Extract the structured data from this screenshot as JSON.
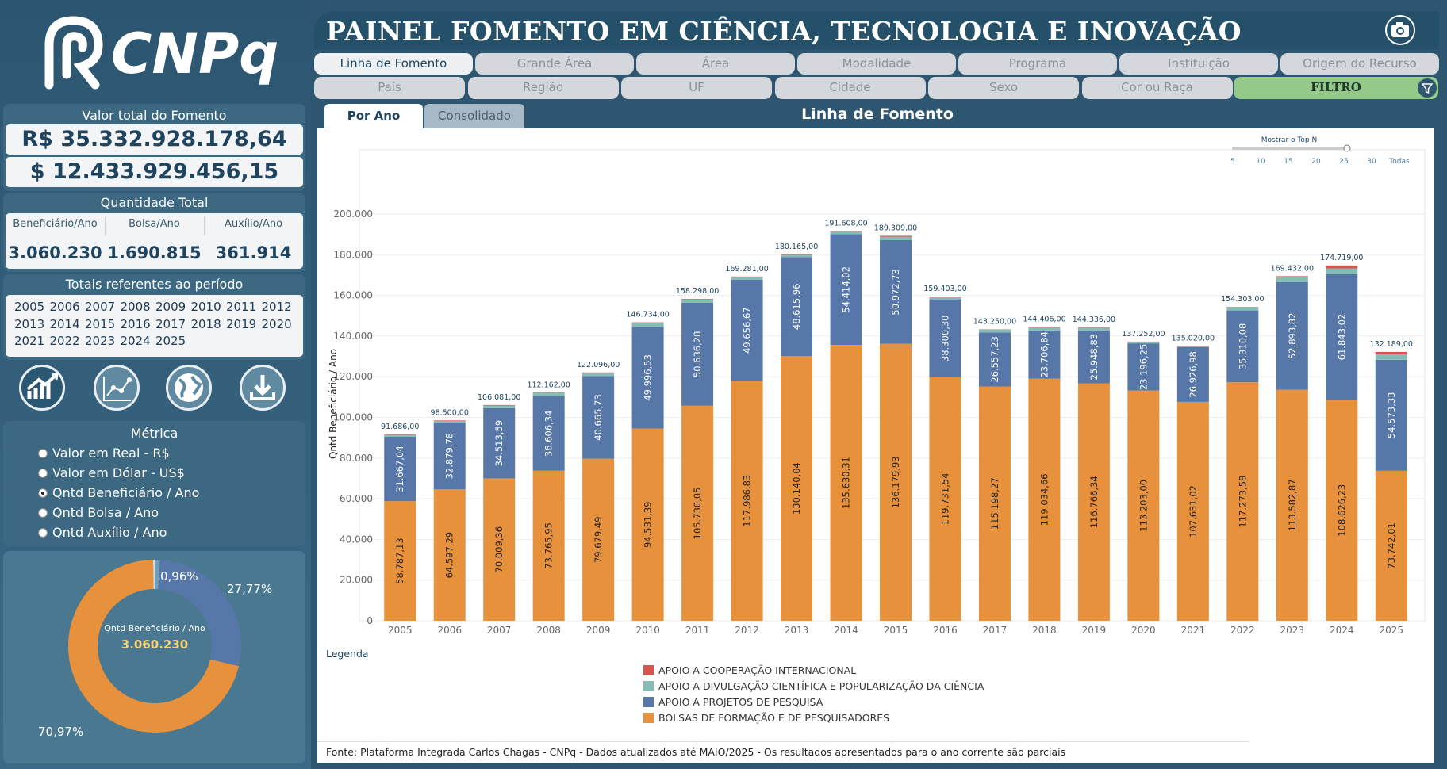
{
  "header": {
    "title": "PAINEL FOMENTO EM CIÊNCIA, TECNOLOGIA E INOVAÇÃO",
    "logo_text": "CNPq"
  },
  "nav_row1": [
    "Linha de Fomento",
    "Grande Área",
    "Área",
    "Modalidade",
    "Programa",
    "Instituição",
    "Origem do Recurso"
  ],
  "nav_row2": [
    "País",
    "Região",
    "UF",
    "Cidade",
    "Sexo",
    "Cor ou Raça"
  ],
  "filter_label": "FILTRO",
  "totals": {
    "title": "Valor total do Fomento",
    "brl": "R$ 35.332.928.178,64",
    "usd": "$ 12.433.929.456,15"
  },
  "quantity": {
    "title": "Quantidade Total",
    "items": [
      {
        "label": "Beneficiário/Ano",
        "value": "3.060.230"
      },
      {
        "label": "Bolsa/Ano",
        "value": "1.690.815"
      },
      {
        "label": "Auxílio/Ano",
        "value": "361.914"
      }
    ]
  },
  "period": {
    "title": "Totais referentes ao período",
    "years": [
      "2005",
      "2006",
      "2007",
      "2008",
      "2009",
      "2010",
      "2011",
      "2012",
      "2013",
      "2014",
      "2015",
      "2016",
      "2017",
      "2018",
      "2019",
      "2020",
      "2021",
      "2022",
      "2023",
      "2024",
      "2025"
    ]
  },
  "action_icons": [
    "trend-chart-icon",
    "line-chart-icon",
    "globe-icon",
    "download-icon"
  ],
  "metric": {
    "title": "Métrica",
    "options": [
      "Valor em Real - R$",
      "Valor em Dólar - US$",
      "Qntd Beneficiário / Ano",
      "Qntd Bolsa / Ano",
      "Qntd Auxílio / Ano"
    ],
    "selected": 2
  },
  "donut": {
    "center_label": "Qntd Beneficiário / Ano",
    "center_value": "3.060.230",
    "slices": [
      {
        "pct": 0.96,
        "label": "0,96%",
        "color": "#6f9fb8"
      },
      {
        "pct": 27.77,
        "label": "27,77%",
        "color": "#5677a8"
      },
      {
        "pct": 70.97,
        "label": "70,97%",
        "color": "#e8913c"
      },
      {
        "pct": 0.3,
        "label": "",
        "color": "#d9d9d9"
      }
    ]
  },
  "tabs": {
    "active": "Por Ano",
    "inactive": "Consolidado"
  },
  "chart_title": "Linha de Fomento",
  "top_n": {
    "label": "Mostrar o Top N",
    "ticks": [
      "5",
      "10",
      "15",
      "20",
      "25",
      "30",
      "Todas"
    ]
  },
  "legend": {
    "title": "Legenda",
    "items": [
      {
        "label": "APOIO A COOPERAÇÃO INTERNACIONAL",
        "color": "#d9534f"
      },
      {
        "label": "APOIO A DIVULGAÇÃO CIENTÍFICA E POPULARIZAÇÃO DA CIÊNCIA",
        "color": "#86bcb6"
      },
      {
        "label": "APOIO A PROJETOS DE PESQUISA",
        "color": "#5677a8"
      },
      {
        "label": "BOLSAS DE FORMAÇÃO E DE PESQUISADORES",
        "color": "#e8913c"
      }
    ]
  },
  "footer": "Fonte: Plataforma Integrada Carlos Chagas - CNPq - Dados atualizados até MAIO/2025 - Os resultados apresentados para o ano corrente são parciais",
  "chart_data": {
    "type": "bar",
    "stacked": true,
    "ylabel": "Qntd Beneficiário / Ano",
    "ylim": [
      0,
      200000
    ],
    "yticks": [
      "0",
      "20.000",
      "40.000",
      "60.000",
      "80.000",
      "100.000",
      "120.000",
      "140.000",
      "160.000",
      "180.000",
      "200.000"
    ],
    "categories": [
      "2005",
      "2006",
      "2007",
      "2008",
      "2009",
      "2010",
      "2011",
      "2012",
      "2013",
      "2014",
      "2015",
      "2016",
      "2017",
      "2018",
      "2019",
      "2020",
      "2021",
      "2022",
      "2023",
      "2024",
      "2025"
    ],
    "totals": [
      91686,
      98500,
      106081,
      112162,
      122096,
      146734,
      158298,
      169281,
      180165,
      191608,
      189309,
      159403,
      143250,
      144406,
      144336,
      137252,
      135020,
      154303,
      169432,
      174719,
      132189
    ],
    "total_labels": [
      "91.686,00",
      "98.500,00",
      "106.081,00",
      "112.162,00",
      "122.096,00",
      "146.734,00",
      "158.298,00",
      "169.281,00",
      "180.165,00",
      "191.608,00",
      "189.309,00",
      "159.403,00",
      "143.250,00",
      "144.406,00",
      "144.336,00",
      "137.252,00",
      "135.020,00",
      "154.303,00",
      "169.432,00",
      "174.719,00",
      "132.189,00"
    ],
    "series": [
      {
        "name": "BOLSAS DE FORMAÇÃO E DE PESQUISADORES",
        "color": "#e8913c",
        "values": [
          58787.13,
          64597.29,
          70009.36,
          73765.95,
          79679.49,
          94531.39,
          105730.05,
          117986.83,
          130140.04,
          135630.31,
          136179.93,
          119731.54,
          115198.27,
          119034.66,
          116766.34,
          113203.0,
          107631.02,
          117273.58,
          113582.87,
          108626.23,
          73742.01
        ],
        "labels": [
          "58.787,13",
          "64.597,29",
          "70.009,36",
          "73.765,95",
          "79.679,49",
          "94.531,39",
          "105.730,05",
          "117.986,83",
          "130.140,04",
          "135.630,31",
          "136.179,93",
          "119.731,54",
          "115.198,27",
          "119.034,66",
          "116.766,34",
          "113.203,00",
          "107.631,02",
          "117.273,58",
          "113.582,87",
          "108.626,23",
          "73.742,01"
        ]
      },
      {
        "name": "APOIO A PROJETOS DE PESQUISA",
        "color": "#5677a8",
        "values": [
          31667.04,
          32879.78,
          34513.59,
          36606.34,
          40665.73,
          49996.53,
          50636.28,
          49656.67,
          48615.96,
          54414.02,
          50972.73,
          38300.3,
          26557.23,
          23706.84,
          25948.83,
          23196.25,
          26926.98,
          35310.08,
          52893.82,
          61843.02,
          54573.33
        ],
        "labels": [
          "31.667,04",
          "32.879,78",
          "34.513,59",
          "36.606,34",
          "40.665,73",
          "49.996,53",
          "50.636,28",
          "49.656,67",
          "48.615,96",
          "54.414,02",
          "50.972,73",
          "38.300,30",
          "26.557,23",
          "23.706,84",
          "25.948,83",
          "23.196,25",
          "26.926,98",
          "35.310,08",
          "52.893,82",
          "61.843,02",
          "54.573,33"
        ]
      },
      {
        "name": "APOIO A DIVULGAÇÃO CIENTÍFICA E POPULARIZAÇÃO DA CIÊNCIA",
        "color": "#86bcb6",
        "values": [
          1000,
          700,
          1300,
          1500,
          1500,
          1900,
          1700,
          1500,
          1200,
          1300,
          1700,
          1200,
          1300,
          1500,
          1500,
          600,
          300,
          1500,
          2500,
          2800,
          2700
        ]
      },
      {
        "name": "APOIO A COOPERAÇÃO INTERNACIONAL",
        "color": "#d9534f",
        "values": [
          231.83,
          322.93,
          257.05,
          289.71,
          250.78,
          306.08,
          231.67,
          137.5,
          209.0,
          263.67,
          456.34,
          171.16,
          194.5,
          164.5,
          120.83,
          252.75,
          162.0,
          219.34,
          455.31,
          1449.75,
          1173.66
        ]
      }
    ]
  }
}
